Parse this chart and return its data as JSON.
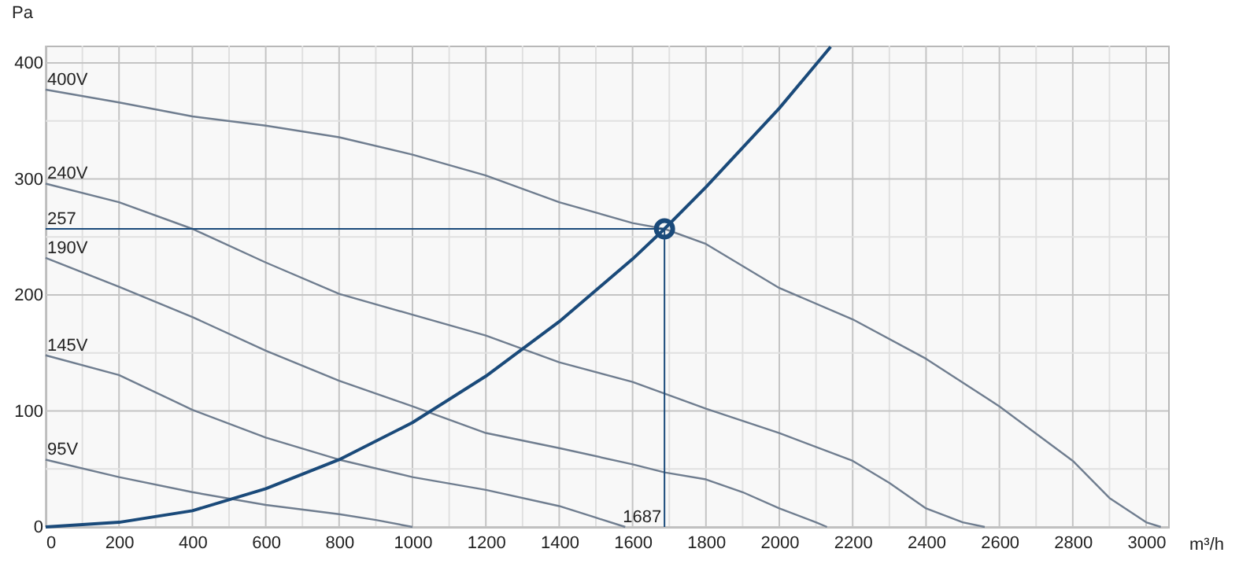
{
  "chart_data": {
    "type": "line",
    "xlabel": "m³/h",
    "ylabel": "Pa",
    "xlim": [
      0,
      3060
    ],
    "ylim": [
      0,
      415
    ],
    "xticks": [
      0,
      {
        "value": 100,
        "label": null
      },
      200,
      {
        "value": 300,
        "label": null
      },
      400,
      {
        "value": 500,
        "label": null
      },
      600,
      {
        "value": 700,
        "label": null
      },
      800,
      {
        "value": 900,
        "label": null
      },
      1000,
      {
        "value": 1100,
        "label": null
      },
      1200,
      {
        "value": 1300,
        "label": null
      },
      1400,
      {
        "value": 1500,
        "label": null
      },
      1600,
      {
        "value": 1700,
        "label": null
      },
      1800,
      {
        "value": 1900,
        "label": null
      },
      2000,
      {
        "value": 2100,
        "label": null
      },
      2200,
      {
        "value": 2300,
        "label": null
      },
      2400,
      {
        "value": 2500,
        "label": null
      },
      2600,
      {
        "value": 2700,
        "label": null
      },
      2800,
      {
        "value": 2900,
        "label": null
      },
      3000
    ],
    "yticks": [
      0,
      {
        "value": 50,
        "label": null
      },
      100,
      {
        "value": 150,
        "label": null
      },
      200,
      {
        "value": 250,
        "label": null
      },
      300,
      {
        "value": 350,
        "label": null
      },
      400
    ],
    "grid": true,
    "series": [
      {
        "name": "400V",
        "color": "#6f7d8f",
        "x": [
          0,
          200,
          400,
          600,
          800,
          1000,
          1200,
          1400,
          1600,
          1687,
          1800,
          2000,
          2200,
          2400,
          2600,
          2800,
          2900,
          3000,
          3040
        ],
        "values": [
          377,
          366,
          354,
          346,
          336,
          321,
          303,
          280,
          262,
          257,
          244,
          206,
          179,
          145,
          104,
          57,
          25,
          4,
          0
        ]
      },
      {
        "name": "240V",
        "color": "#6f7d8f",
        "x": [
          0,
          200,
          400,
          600,
          800,
          1000,
          1200,
          1400,
          1600,
          1800,
          2000,
          2200,
          2300,
          2400,
          2500,
          2560
        ],
        "values": [
          296,
          280,
          257,
          228,
          201,
          183,
          165,
          142,
          125,
          102,
          81,
          57,
          38,
          16,
          4,
          0
        ]
      },
      {
        "name": "190V",
        "color": "#6f7d8f",
        "x": [
          0,
          200,
          400,
          600,
          800,
          1000,
          1200,
          1400,
          1600,
          1687,
          1800,
          1900,
          2000,
          2100,
          2130
        ],
        "values": [
          232,
          207,
          181,
          152,
          126,
          104,
          81,
          68,
          54,
          47,
          41,
          30,
          16,
          4,
          0
        ]
      },
      {
        "name": "145V",
        "color": "#6f7d8f",
        "x": [
          0,
          200,
          400,
          600,
          800,
          1000,
          1200,
          1400,
          1500,
          1580
        ],
        "values": [
          148,
          131,
          101,
          77,
          58,
          43,
          32,
          18,
          8,
          0
        ]
      },
      {
        "name": "95V",
        "color": "#6f7d8f",
        "x": [
          0,
          200,
          400,
          600,
          800,
          900,
          1000
        ],
        "values": [
          58,
          43,
          30,
          19,
          11,
          6,
          0
        ]
      },
      {
        "color": "#1a4a7a",
        "x": [
          0,
          200,
          400,
          600,
          800,
          1000,
          1200,
          1400,
          1600,
          1687,
          1800,
          2000,
          2140
        ],
        "values": [
          0,
          4,
          14,
          33,
          58,
          90,
          130,
          177,
          231,
          257,
          293,
          361,
          414
        ]
      },
      {
        "type": "scatter",
        "marker": "circle",
        "color": "#1a4a7a",
        "x": [
          1687
        ],
        "values": [
          257
        ]
      }
    ],
    "ref_lines": [
      {
        "axis": "y",
        "value": 257,
        "label": "257",
        "color": "#1a4a7a"
      },
      {
        "axis": "x",
        "value": 1687,
        "label": "1687",
        "color": "#1a4a7a"
      }
    ]
  }
}
